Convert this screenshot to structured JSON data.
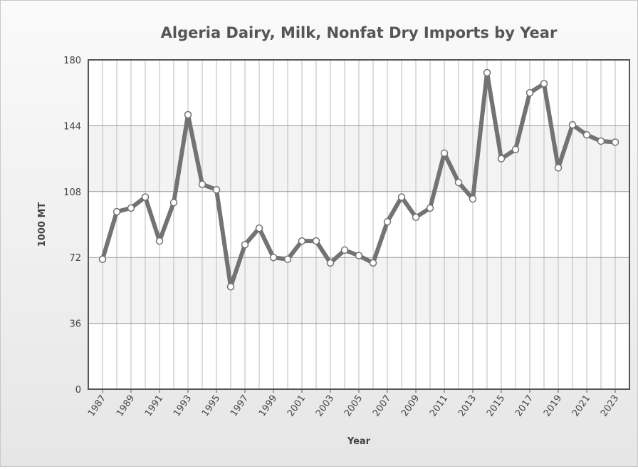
{
  "chart_data": {
    "type": "line",
    "title": "Algeria Dairy, Milk, Nonfat Dry Imports by Year",
    "x_label": "Year",
    "y_label": "1000 MT",
    "x": [
      1987,
      1988,
      1989,
      1990,
      1991,
      1992,
      1993,
      1994,
      1995,
      1996,
      1997,
      1998,
      1999,
      2000,
      2001,
      2002,
      2003,
      2004,
      2005,
      2006,
      2007,
      2008,
      2009,
      2010,
      2011,
      2012,
      2013,
      2014,
      2015,
      2016,
      2017,
      2018,
      2019,
      2020,
      2021,
      2022,
      2023
    ],
    "series": [
      {
        "name": "1000 MT",
        "color": "#737373",
        "values": [
          71,
          97,
          99,
          105,
          81,
          102,
          150,
          112,
          109,
          56,
          79,
          88,
          72,
          71,
          81,
          81,
          69,
          76,
          73,
          69,
          91.5,
          105,
          94,
          99,
          129,
          113,
          104,
          173,
          126,
          131,
          162,
          167,
          121,
          144.5,
          139,
          135.6,
          135
        ]
      }
    ],
    "xlim": [
      1986,
      2024
    ],
    "xticks": [
      1987,
      1989,
      1991,
      1993,
      1995,
      1997,
      1999,
      2001,
      2003,
      2005,
      2007,
      2009,
      2011,
      2013,
      2015,
      2017,
      2019,
      2021,
      2023
    ],
    "ylim": [
      0,
      180
    ],
    "yticks": [
      0,
      36,
      72,
      108,
      144,
      180
    ],
    "grid": true
  }
}
